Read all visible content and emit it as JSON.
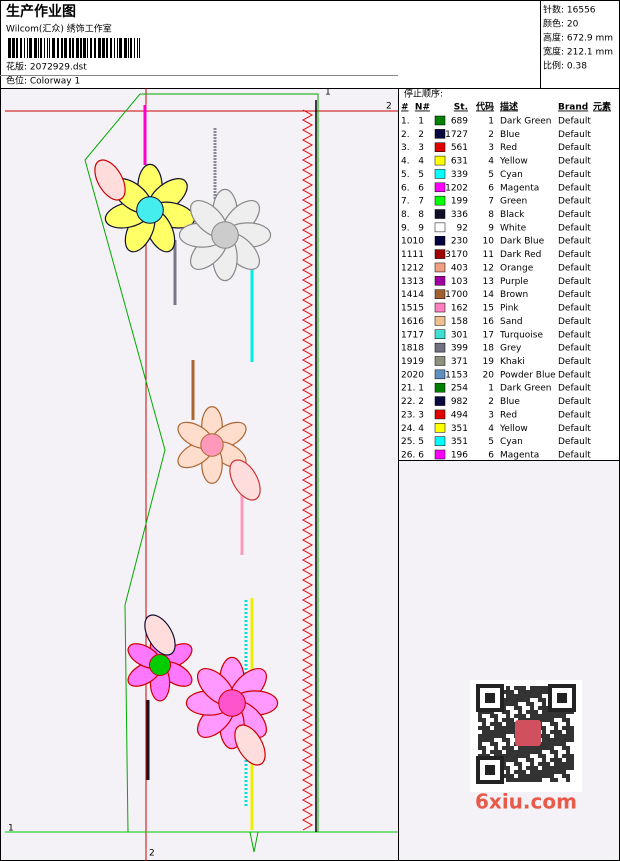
{
  "header": {
    "title": "生产作业图",
    "subtitle": "Wilcom(汇众) 绣饰工作室",
    "design": "花版: 2072929.dst",
    "colorway": "色位: Colorway 1"
  },
  "stats": [
    "针数: 16556",
    "颜色: 20",
    "高度: 672.9 mm",
    "宽度: 212.1 mm",
    "比例: 0.38"
  ],
  "table": {
    "caption": "停止顺序:",
    "columns": [
      "#",
      "N#",
      "St.",
      "代码",
      "描述",
      "Brand",
      "元素"
    ],
    "rows": [
      {
        "no": "1.",
        "n": 1,
        "st": 689,
        "code": 1,
        "color": "#008000",
        "desc": "Dark Green",
        "brand": "Default"
      },
      {
        "no": "2.",
        "n": 2,
        "st": 1727,
        "code": 2,
        "color": "#0a0a40",
        "desc": "Blue",
        "brand": "Default"
      },
      {
        "no": "3.",
        "n": 3,
        "st": 561,
        "code": 3,
        "color": "#e00000",
        "desc": "Red",
        "brand": "Default"
      },
      {
        "no": "4.",
        "n": 4,
        "st": 631,
        "code": 4,
        "color": "#ffff00",
        "desc": "Yellow",
        "brand": "Default"
      },
      {
        "no": "5.",
        "n": 5,
        "st": 339,
        "code": 5,
        "color": "#00ffff",
        "desc": "Cyan",
        "brand": "Default"
      },
      {
        "no": "6.",
        "n": 6,
        "st": 1202,
        "code": 6,
        "color": "#ff00ff",
        "desc": "Magenta",
        "brand": "Default"
      },
      {
        "no": "7.",
        "n": 7,
        "st": 199,
        "code": 7,
        "color": "#00ff00",
        "desc": "Green",
        "brand": "Default"
      },
      {
        "no": "8.",
        "n": 8,
        "st": 336,
        "code": 8,
        "color": "#10102a",
        "desc": "Black",
        "brand": "Default"
      },
      {
        "no": "9.",
        "n": 9,
        "st": 92,
        "code": 9,
        "color": "#ffffff",
        "desc": "White",
        "brand": "Default"
      },
      {
        "no": "10.",
        "n": 10,
        "st": 230,
        "code": 10,
        "color": "#000040",
        "desc": "Dark Blue",
        "brand": "Default"
      },
      {
        "no": "11.",
        "n": 11,
        "st": 3170,
        "code": 11,
        "color": "#a00000",
        "desc": "Dark Red",
        "brand": "Default"
      },
      {
        "no": "12.",
        "n": 12,
        "st": 403,
        "code": 12,
        "color": "#f0a080",
        "desc": "Orange",
        "brand": "Default"
      },
      {
        "no": "13.",
        "n": 13,
        "st": 103,
        "code": 13,
        "color": "#a000a0",
        "desc": "Purple",
        "brand": "Default"
      },
      {
        "no": "14.",
        "n": 14,
        "st": 1700,
        "code": 14,
        "color": "#a06030",
        "desc": "Brown",
        "brand": "Default"
      },
      {
        "no": "15.",
        "n": 15,
        "st": 162,
        "code": 15,
        "color": "#ff80c0",
        "desc": "Pink",
        "brand": "Default"
      },
      {
        "no": "16.",
        "n": 16,
        "st": 158,
        "code": 16,
        "color": "#f0c090",
        "desc": "Sand",
        "brand": "Default"
      },
      {
        "no": "17.",
        "n": 17,
        "st": 301,
        "code": 17,
        "color": "#40e0d0",
        "desc": "Turquoise",
        "brand": "Default"
      },
      {
        "no": "18.",
        "n": 18,
        "st": 399,
        "code": 18,
        "color": "#707080",
        "desc": "Grey",
        "brand": "Default"
      },
      {
        "no": "19.",
        "n": 19,
        "st": 371,
        "code": 19,
        "color": "#909080",
        "desc": "Khaki",
        "brand": "Default"
      },
      {
        "no": "20.",
        "n": 20,
        "st": 1153,
        "code": 20,
        "color": "#6090c0",
        "desc": "Powder Blue",
        "brand": "Default"
      },
      {
        "no": "21.",
        "n": 1,
        "st": 254,
        "code": 1,
        "color": "#008000",
        "desc": "Dark Green",
        "brand": "Default"
      },
      {
        "no": "22.",
        "n": 2,
        "st": 982,
        "code": 2,
        "color": "#0a0a40",
        "desc": "Blue",
        "brand": "Default"
      },
      {
        "no": "23.",
        "n": 3,
        "st": 494,
        "code": 3,
        "color": "#e00000",
        "desc": "Red",
        "brand": "Default"
      },
      {
        "no": "24.",
        "n": 4,
        "st": 351,
        "code": 4,
        "color": "#ffff00",
        "desc": "Yellow",
        "brand": "Default"
      },
      {
        "no": "25.",
        "n": 5,
        "st": 351,
        "code": 5,
        "color": "#00ffff",
        "desc": "Cyan",
        "brand": "Default"
      },
      {
        "no": "26.",
        "n": 6,
        "st": 196,
        "code": 6,
        "color": "#ff00ff",
        "desc": "Magenta",
        "brand": "Default"
      }
    ]
  },
  "canvas": {
    "markers": [
      "1",
      "2",
      "1",
      "2"
    ]
  },
  "watermark": "6xiu.com"
}
